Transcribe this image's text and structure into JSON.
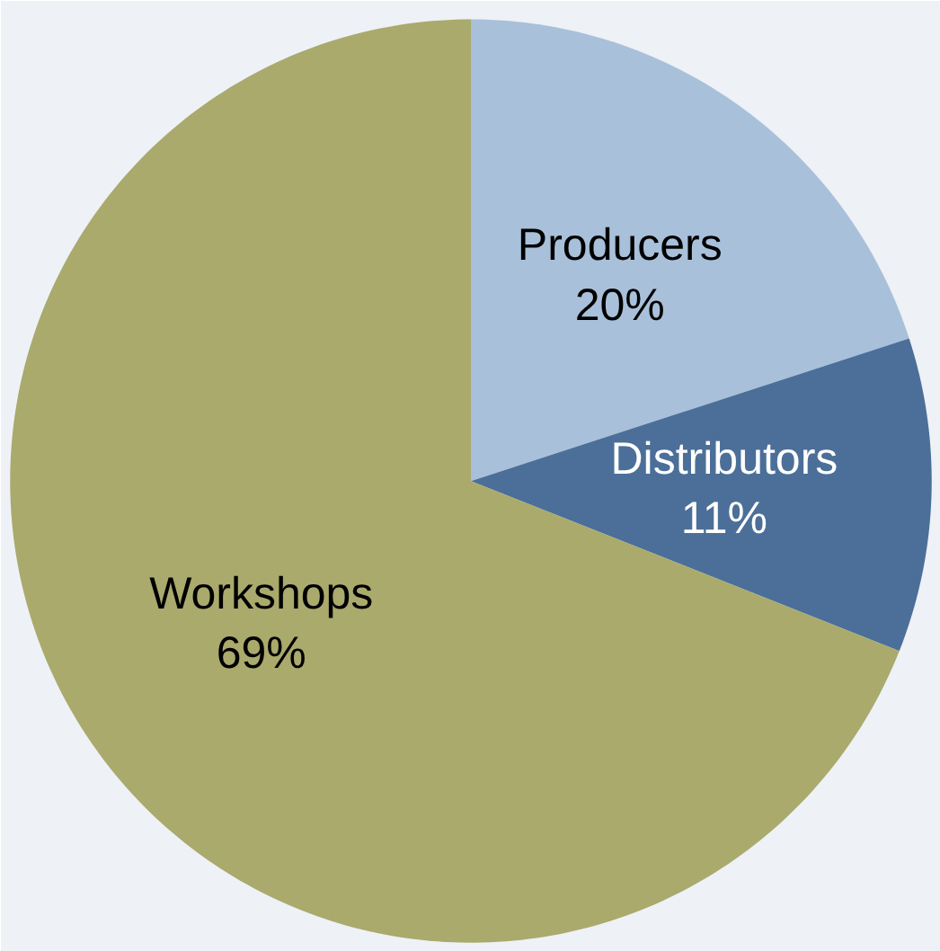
{
  "chart_data": {
    "type": "pie",
    "categories": [
      "Producers",
      "Distributors",
      "Workshops"
    ],
    "values": [
      20,
      11,
      69
    ],
    "value_labels": [
      "20%",
      "11%",
      "69%"
    ],
    "colors": [
      "#a9c0da",
      "#4b6f98",
      "#a9aa6c"
    ]
  }
}
